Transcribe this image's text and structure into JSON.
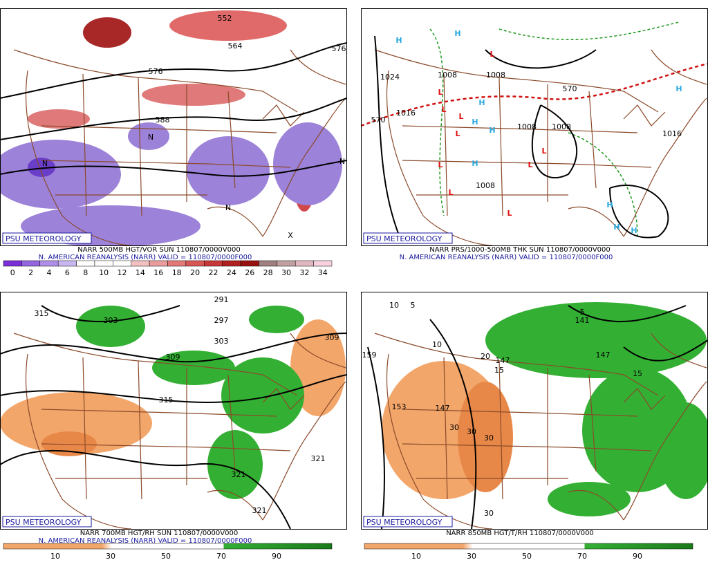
{
  "panels": [
    {
      "title": "NARR 500MB HGT/VOR SUN 110807/0000V000",
      "subtitle": "N. AMERICAN REANALYSIS (NARR) VALID = 110807/0000F000",
      "credit": "PSU METEOROLOGY",
      "colorbar": [
        0,
        2,
        4,
        6,
        8,
        10,
        12,
        14,
        16,
        18,
        20,
        22,
        24,
        26,
        28,
        30,
        32,
        34
      ],
      "labels": [
        "552",
        "564",
        "576",
        "576",
        "588",
        "N",
        "N",
        "N",
        "N",
        "X"
      ]
    },
    {
      "title": "NARR PRS/1000-500MB THK SUN 110807/0000V000",
      "subtitle": "N. AMERICAN REANALYSIS (NARR) VALID = 110807/0000F000",
      "credit": "PSU METEOROLOGY",
      "labels": [
        "1024",
        "1008",
        "1008",
        "1008",
        "1008",
        "1016",
        "1016",
        "570",
        "570",
        "1008",
        "H",
        "H",
        "H",
        "H",
        "H",
        "H",
        "H",
        "H",
        "H",
        "H",
        "L",
        "L",
        "L",
        "L",
        "L",
        "L",
        "L",
        "L",
        "L",
        "L"
      ]
    },
    {
      "title": "NARR 700MB HGT/RH SUN 110807/0000V000",
      "subtitle": "N. AMERICAN REANALYSIS (NARR) VALID = 110807/0000F000",
      "credit": "PSU METEOROLOGY",
      "colorbar": [
        10,
        30,
        50,
        70,
        90
      ],
      "labels": [
        "315",
        "303",
        "297",
        "291",
        "303",
        "309",
        "309",
        "315",
        "321",
        "321",
        "321"
      ]
    },
    {
      "title": "NARR 850MB HGT/T/RH 110807/0000V000",
      "credit": "PSU METEOROLOGY",
      "colorbar": [
        10,
        30,
        50,
        70,
        90
      ],
      "labels": [
        "159",
        "153",
        "147",
        "147",
        "141",
        "147",
        "5",
        "5",
        "10",
        "10",
        "15",
        "15",
        "20",
        "30",
        "30",
        "30",
        "30"
      ]
    }
  ]
}
